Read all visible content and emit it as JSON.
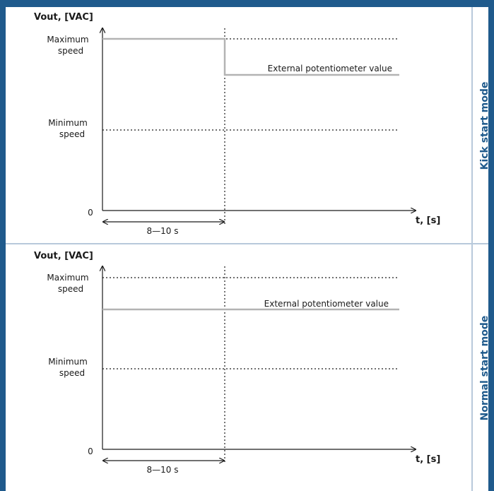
{
  "colors": {
    "frame": "#1f5a8c",
    "separator": "#b8c9db",
    "signal": "#b3b3b3",
    "axis": "#1a1a1a",
    "side_text": "#1f5a8c"
  },
  "panels": [
    {
      "mode_label": "Kick start mode",
      "y_axis_title": "Vout, [VAC]",
      "x_axis_title": "t, [s]",
      "max_label_1": "Maximum",
      "max_label_2": "speed",
      "min_label_1": "Minimum",
      "min_label_2": "speed",
      "zero_label": "0",
      "interval_label": "8—10 s",
      "signal_label": "External potentiometer value"
    },
    {
      "mode_label": "Normal start mode",
      "y_axis_title": "Vout, [VAC]",
      "x_axis_title": "t, [s]",
      "max_label_1": "Maximum",
      "max_label_2": "speed",
      "min_label_1": "Minimum",
      "min_label_2": "speed",
      "zero_label": "0",
      "interval_label": "8—10 s",
      "signal_label": "External potentiometer value"
    }
  ]
}
